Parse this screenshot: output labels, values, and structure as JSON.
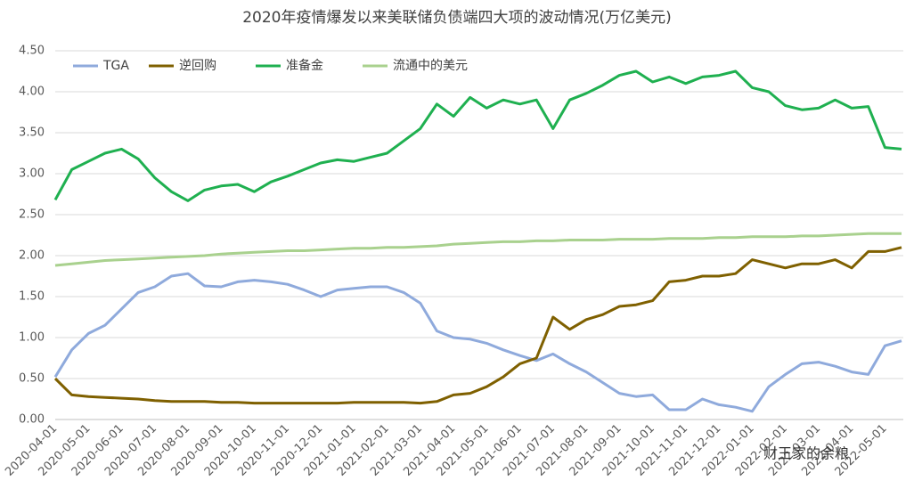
{
  "chart_data": {
    "type": "line",
    "title": "2020年疫情爆发以来美联储负债端四大项的波动情况(万亿美元)",
    "watermark": "财王家的余粮",
    "categories": [
      "2020-04-01",
      null,
      "2020-05-01",
      null,
      "2020-06-01",
      null,
      "2020-07-01",
      null,
      "2020-08-01",
      null,
      "2020-09-01",
      null,
      "2020-10-01",
      null,
      "2020-11-01",
      null,
      "2020-12-01",
      null,
      "2021-01-01",
      null,
      "2021-02-01",
      null,
      "2021-03-01",
      null,
      "2021-04-01",
      null,
      "2021-05-01",
      null,
      "2021-06-01",
      null,
      "2021-07-01",
      null,
      "2021-08-01",
      null,
      "2021-09-01",
      null,
      "2021-10-01",
      null,
      "2021-11-01",
      null,
      "2021-12-01",
      null,
      "2022-01-01",
      null,
      "2022-02-01",
      null,
      "2022-03-01",
      null,
      "2022-04-01",
      null,
      "2022-05-01",
      null
    ],
    "series": [
      {
        "name": "TGA",
        "color": "#8faadc",
        "values": [
          0.52,
          0.85,
          1.05,
          1.15,
          1.35,
          1.55,
          1.62,
          1.75,
          1.78,
          1.63,
          1.62,
          1.68,
          1.7,
          1.68,
          1.65,
          1.58,
          1.5,
          1.58,
          1.6,
          1.62,
          1.62,
          1.55,
          1.42,
          1.08,
          1.0,
          0.98,
          0.93,
          0.85,
          0.78,
          0.72,
          0.8,
          0.68,
          0.58,
          0.45,
          0.32,
          0.28,
          0.3,
          0.12,
          0.12,
          0.25,
          0.18,
          0.15,
          0.1,
          0.4,
          0.55,
          0.68,
          0.7,
          0.65,
          0.58,
          0.55,
          0.9,
          0.96
        ]
      },
      {
        "name": "逆回购",
        "color": "#7f6000",
        "values": [
          0.5,
          0.3,
          0.28,
          0.27,
          0.26,
          0.25,
          0.23,
          0.22,
          0.22,
          0.22,
          0.21,
          0.21,
          0.2,
          0.2,
          0.2,
          0.2,
          0.2,
          0.2,
          0.21,
          0.21,
          0.21,
          0.21,
          0.2,
          0.22,
          0.3,
          0.32,
          0.4,
          0.52,
          0.68,
          0.75,
          1.25,
          1.1,
          1.22,
          1.28,
          1.38,
          1.4,
          1.45,
          1.68,
          1.7,
          1.75,
          1.75,
          1.78,
          1.95,
          1.9,
          1.85,
          1.9,
          1.9,
          1.95,
          1.85,
          2.05,
          2.05,
          2.1
        ]
      },
      {
        "name": "准备金",
        "color": "#1fb050",
        "values": [
          2.68,
          3.05,
          3.15,
          3.25,
          3.3,
          3.18,
          2.95,
          2.78,
          2.67,
          2.8,
          2.85,
          2.87,
          2.78,
          2.9,
          2.97,
          3.05,
          3.13,
          3.17,
          3.15,
          3.2,
          3.25,
          3.4,
          3.55,
          3.85,
          3.7,
          3.93,
          3.8,
          3.9,
          3.85,
          3.9,
          3.55,
          3.9,
          3.98,
          4.08,
          4.2,
          4.25,
          4.12,
          4.18,
          4.1,
          4.18,
          4.2,
          4.25,
          4.05,
          4.0,
          3.83,
          3.78,
          3.8,
          3.9,
          3.8,
          3.82,
          3.32,
          3.3
        ]
      },
      {
        "name": "流通中的美元",
        "color": "#a9d18e",
        "values": [
          1.88,
          1.9,
          1.92,
          1.94,
          1.95,
          1.96,
          1.97,
          1.98,
          1.99,
          2.0,
          2.02,
          2.03,
          2.04,
          2.05,
          2.06,
          2.06,
          2.07,
          2.08,
          2.09,
          2.09,
          2.1,
          2.1,
          2.11,
          2.12,
          2.14,
          2.15,
          2.16,
          2.17,
          2.17,
          2.18,
          2.18,
          2.19,
          2.19,
          2.19,
          2.2,
          2.2,
          2.2,
          2.21,
          2.21,
          2.21,
          2.22,
          2.22,
          2.23,
          2.23,
          2.23,
          2.24,
          2.24,
          2.25,
          2.26,
          2.27,
          2.27,
          2.27
        ]
      }
    ],
    "ylim": [
      0,
      4.5
    ],
    "yticks": [
      {
        "value": 0,
        "label": "0.00"
      },
      {
        "value": 0.5,
        "label": "0.50"
      },
      {
        "value": 1,
        "label": "1.00"
      },
      {
        "value": 1.5,
        "label": "1.50"
      },
      {
        "value": 2,
        "label": "2.00"
      },
      {
        "value": 2.5,
        "label": "2.50"
      },
      {
        "value": 3,
        "label": "3.00"
      },
      {
        "value": 3.5,
        "label": "3.50"
      },
      {
        "value": 4,
        "label": "4.00"
      },
      {
        "value": 4.5,
        "label": "4.50"
      }
    ],
    "grid": true,
    "legend": "top-left"
  }
}
